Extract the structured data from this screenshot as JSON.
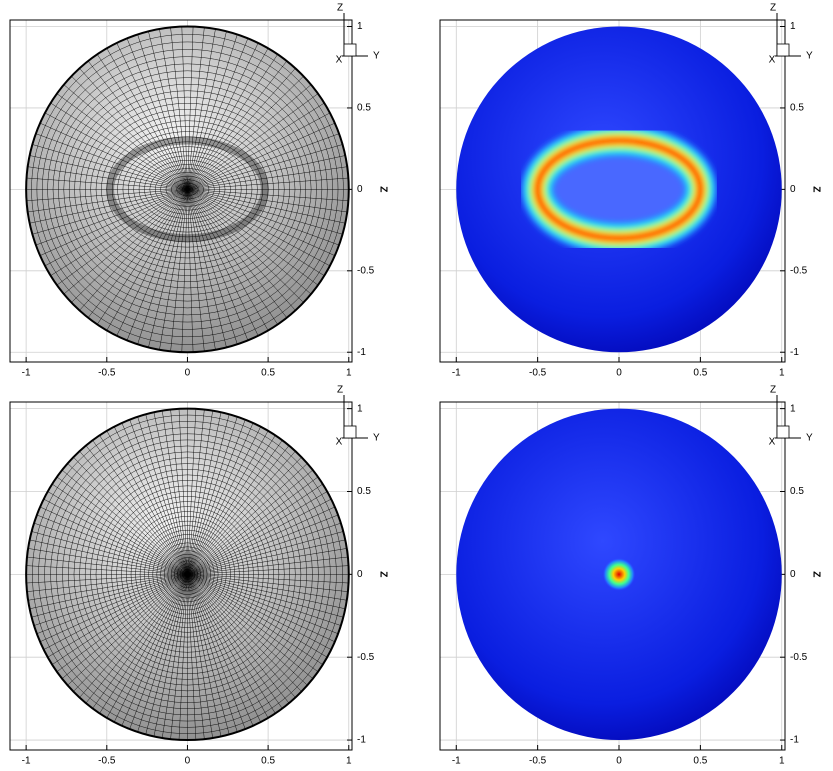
{
  "chart_data": [
    {
      "type": "mesh",
      "pattern": "ring",
      "xlim": [
        -1.1,
        1.02
      ],
      "ylim": [
        -1.06,
        1.04
      ],
      "xticks": [
        -1,
        -0.5,
        0,
        0.5,
        1
      ],
      "yticks": [
        -1,
        -0.5,
        0,
        0.5,
        1
      ],
      "ylabel": "Z",
      "triad": [
        "Z",
        "Y",
        "X"
      ],
      "grid": true
    },
    {
      "type": "contour",
      "pattern": "ring",
      "xlim": [
        -1.1,
        1.02
      ],
      "ylim": [
        -1.06,
        1.04
      ],
      "xticks": [
        -1,
        -0.5,
        0,
        0.5,
        1
      ],
      "yticks": [
        -1,
        -0.5,
        0,
        0.5,
        1
      ],
      "ylabel": "Z",
      "triad": [
        "Z",
        "Y",
        "X"
      ],
      "grid": true
    },
    {
      "type": "mesh",
      "pattern": "spot",
      "xlim": [
        -1.1,
        1.02
      ],
      "ylim": [
        -1.06,
        1.04
      ],
      "xticks": [
        -1,
        -0.5,
        0,
        0.5,
        1
      ],
      "yticks": [
        -1,
        -0.5,
        0,
        0.5,
        1
      ],
      "ylabel": "Z",
      "triad": [
        "Z",
        "Y",
        "X"
      ],
      "grid": true
    },
    {
      "type": "contour",
      "pattern": "spot",
      "xlim": [
        -1.1,
        1.02
      ],
      "ylim": [
        -1.06,
        1.04
      ],
      "xticks": [
        -1,
        -0.5,
        0,
        0.5,
        1
      ],
      "yticks": [
        -1,
        -0.5,
        0,
        0.5,
        1
      ],
      "ylabel": "Z",
      "triad": [
        "Z",
        "Y",
        "X"
      ],
      "grid": true
    }
  ]
}
